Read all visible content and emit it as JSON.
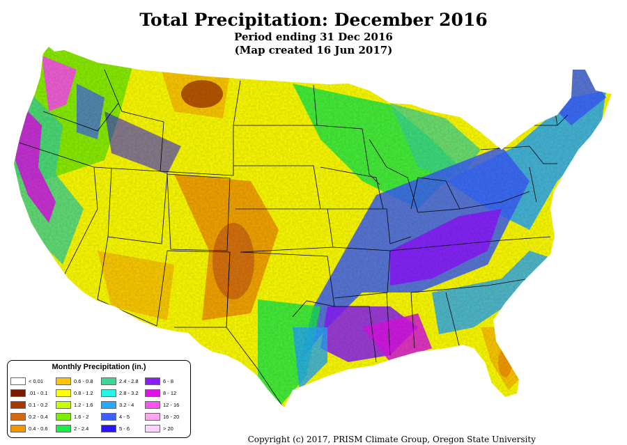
{
  "title": "Total Precipitation: December 2016",
  "subtitle1": "Period ending 31 Dec 2016",
  "subtitle2": "(Map created 16 Jun 2017)",
  "legend": {
    "title": "Monthly Precipitation (in.)",
    "items": [
      {
        "label": "< 0.01",
        "color": "#ffffff"
      },
      {
        "label": ".01 - 0.1",
        "color": "#7a1800"
      },
      {
        "label": "0.1 - 0.2",
        "color": "#a83a00"
      },
      {
        "label": "0.2 - 0.4",
        "color": "#d56a10"
      },
      {
        "label": "0.4 - 0.6",
        "color": "#f59800"
      },
      {
        "label": "0.6 - 0.8",
        "color": "#ffc400"
      },
      {
        "label": "0.8 - 1.2",
        "color": "#ffff00"
      },
      {
        "label": "1.2 - 1.6",
        "color": "#c8ff00"
      },
      {
        "label": "1.6 - 2",
        "color": "#7eee00"
      },
      {
        "label": "2 - 2.4",
        "color": "#18ee48"
      },
      {
        "label": "2.4 - 2.8",
        "color": "#3cd896"
      },
      {
        "label": "2.8 - 3.2",
        "color": "#23f5e6"
      },
      {
        "label": "3.2 - 4",
        "color": "#26aaff"
      },
      {
        "label": "4 - 5",
        "color": "#3c60ff"
      },
      {
        "label": "5 - 6",
        "color": "#2812ff"
      },
      {
        "label": "6 - 8",
        "color": "#8c1cff"
      },
      {
        "label": "8 - 12",
        "color": "#de14e6"
      },
      {
        "label": "12 - 16",
        "color": "#ff50f0"
      },
      {
        "label": "16 - 20",
        "color": "#ffa6f0"
      },
      {
        "label": "> 20",
        "color": "#ffd2ff"
      }
    ]
  },
  "copyright": "Copyright (c) 2017, PRISM Climate Group, Oregon State University"
}
